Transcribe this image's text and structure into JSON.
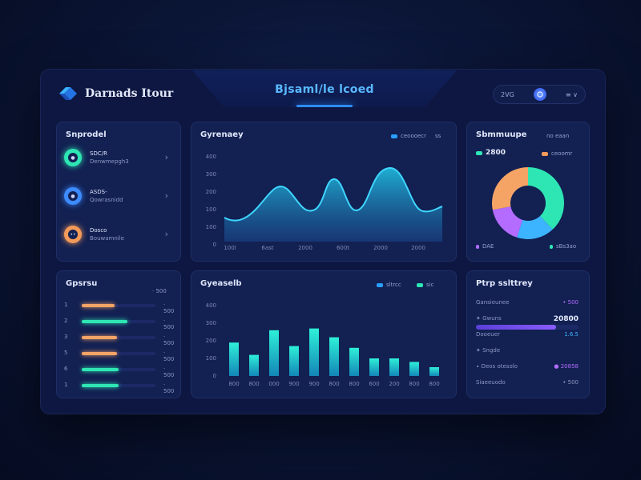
{
  "header": {
    "brand": "Darnads Itour",
    "center_title": "Bjsaml/le lcoed",
    "user_label": "2VG",
    "user_meta": "≡ ∨",
    "logo_icon": "diamond-logo-icon"
  },
  "left_top": {
    "title": "Snprodel",
    "items": [
      {
        "name": "SDC/R",
        "sub": "Denwmepgh3",
        "color": "#2ee6b3",
        "glyph": "●"
      },
      {
        "name": "ASDS-",
        "sub": "Qowrasnidd",
        "color": "#3d8bff",
        "glyph": "●"
      },
      {
        "name": "Dosco",
        "sub": "Bouwamnile",
        "color": "#f39a5a",
        "glyph": "••"
      }
    ]
  },
  "line_card": {
    "title": "Gyrenaey",
    "legend": [
      {
        "label": "ceoooecr",
        "color": "#2a9fff"
      },
      {
        "label": "ss",
        "color": "#2a9fff"
      }
    ],
    "chart_data": {
      "type": "area",
      "y_ticks": [
        "400",
        "300",
        "200",
        "100",
        "100",
        "0"
      ],
      "x_ticks": [
        "100l",
        "6ast",
        "2000",
        "600t",
        "2000",
        "2000"
      ],
      "grid": false,
      "legend_position": "top-right"
    }
  },
  "donut_card": {
    "title": "Sbmmuupe",
    "header_right": "no eaan",
    "top_legend": [
      {
        "label": "2800",
        "color": "#2ee6b3"
      },
      {
        "label": "ceoomr",
        "color": "#f39a5a"
      }
    ],
    "bottom_legend": [
      {
        "label": "DAE",
        "color": "#b36cff"
      },
      {
        "label": "sBs3ao",
        "color": "#2ee6b3"
      }
    ],
    "chart_data": {
      "type": "pie",
      "segments": [
        {
          "value": 38,
          "color": "#2ee6b3"
        },
        {
          "value": 17,
          "color": "#3db4ff"
        },
        {
          "value": 17,
          "color": "#b36cff"
        },
        {
          "value": 28,
          "color": "#f5a466"
        }
      ]
    }
  },
  "left_bottom": {
    "title": "Gpsrsu",
    "header_right": "· 500",
    "rows": [
      {
        "num": "1",
        "pct": 0.45,
        "color": "#f5a466",
        "val": "· 500"
      },
      {
        "num": "2",
        "pct": 0.62,
        "color": "#2ee6b3",
        "val": "· 500"
      },
      {
        "num": "3",
        "pct": 0.48,
        "color": "#f5a466",
        "val": "· 500"
      },
      {
        "num": "5",
        "pct": 0.48,
        "color": "#f5a466",
        "val": "· 500"
      },
      {
        "num": "6",
        "pct": 0.5,
        "color": "#2ee6b3",
        "val": "· 500"
      },
      {
        "num": "1",
        "pct": 0.5,
        "color": "#2ee6b3",
        "val": "· 500"
      }
    ]
  },
  "bar_card": {
    "title": "Gyeaselb",
    "legend": [
      {
        "label": "sltrcc",
        "color": "#2a9fff"
      },
      {
        "label": "sic",
        "color": "#2ee6b3"
      }
    ],
    "chart_data": {
      "type": "bar",
      "y_ticks": [
        "400",
        "300",
        "200",
        "100",
        "0"
      ],
      "x_ticks": [
        "800",
        "800",
        "000",
        "900",
        "900",
        "800",
        "800",
        "600",
        "200",
        "800",
        "800"
      ],
      "values": [
        190,
        120,
        260,
        170,
        270,
        220,
        160,
        100,
        100,
        80,
        50
      ],
      "ylim": [
        0,
        400
      ]
    }
  },
  "right_bottom": {
    "title": "Ptrp sslttrey",
    "rows": [
      {
        "label": "Gansieunee",
        "value": "• 500",
        "value_color": "#b36cff"
      },
      {
        "label": "✦ Gwuns",
        "value": "20800",
        "value_color": "#e8edff",
        "progress": 0.78
      },
      {
        "label": "Dooeuer",
        "value": "1.6.5",
        "value_color": "#3db4ff"
      },
      {
        "label": "✦ Sngde",
        "value": "",
        "value_color": "#8c98c4"
      },
      {
        "label": "∙ Deos otesolo",
        "value": "● 20858",
        "value_color": "#b36cff"
      },
      {
        "label": "Siaeeuodo",
        "value": "• 500",
        "value_color": "#8c98c4"
      }
    ]
  }
}
